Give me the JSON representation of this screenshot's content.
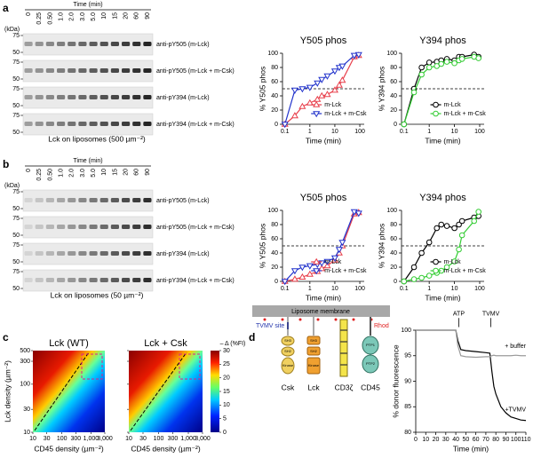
{
  "panel_labels": [
    "a",
    "b",
    "c",
    "d"
  ],
  "blots": [
    {
      "time_header": "Time (min)",
      "kda_label": "(kDa)",
      "times": [
        "0",
        "0.25",
        "0.50",
        "1.0",
        "2.0",
        "3.0",
        "5.0",
        "10",
        "15",
        "20",
        "60",
        "90"
      ],
      "markers": [
        "75",
        "50"
      ],
      "rows": [
        "anti-pY505 (m-Lck)",
        "anti-pY505 (m-Lck + m-Csk)",
        "anti-pY394 (m-Lck)",
        "anti-pY394 (m-Lck + m-Csk)"
      ],
      "caption": "Lck on liposomes (500 µm⁻²)"
    },
    {
      "time_header": "Time (min)",
      "kda_label": "(kDa)",
      "times": [
        "0",
        "0.25",
        "0.50",
        "1.0",
        "2.0",
        "3.0",
        "5.0",
        "10",
        "15",
        "20",
        "60",
        "90"
      ],
      "markers": [
        "75",
        "50"
      ],
      "rows": [
        "anti-pY505 (m-Lck)",
        "anti-pY505 (m-Lck + m-Csk)",
        "anti-pY394 (m-Lck)",
        "anti-pY394 (m-Lck + m-Csk)"
      ],
      "caption": "Lck on liposomes (50 µm⁻²)"
    }
  ],
  "chart_data": [
    {
      "type": "line",
      "title": "Y505 phos",
      "xlabel": "Time (min)",
      "ylabel": "% Y505 phos",
      "xscale": "log",
      "x": [
        0.1,
        0.25,
        0.5,
        1,
        2,
        3,
        5,
        10,
        15,
        20,
        60,
        90
      ],
      "xlim": [
        0.08,
        150
      ],
      "xticks": [
        0.1,
        1,
        10,
        100
      ],
      "ylim": [
        0,
        100
      ],
      "yticks": [
        0,
        20,
        40,
        60,
        80,
        100
      ],
      "hline": 50,
      "legend": "lower right",
      "series": [
        {
          "name": "m-Lck",
          "color": "#e8404c",
          "marker": "triangle",
          "values": [
            0,
            12,
            25,
            30,
            35,
            40,
            42,
            48,
            55,
            62,
            95,
            97
          ]
        },
        {
          "name": "m-Lck + m-Csk",
          "color": "#2233cc",
          "marker": "inverted-triangle",
          "values": [
            0,
            48,
            50,
            52,
            58,
            63,
            68,
            75,
            80,
            82,
            97,
            98
          ]
        }
      ]
    },
    {
      "type": "line",
      "title": "Y394 phos",
      "xlabel": "Time (min)",
      "ylabel": "% Y394 phos",
      "xscale": "log",
      "x": [
        0.1,
        0.25,
        0.5,
        1,
        2,
        3,
        5,
        10,
        15,
        20,
        60,
        90
      ],
      "xlim": [
        0.08,
        150
      ],
      "xticks": [
        0.1,
        1,
        10,
        100
      ],
      "ylim": [
        0,
        100
      ],
      "yticks": [
        0,
        20,
        40,
        60,
        80,
        100
      ],
      "hline": 50,
      "legend": "lower right",
      "series": [
        {
          "name": "m-Lck",
          "color": "#000000",
          "marker": "circle",
          "values": [
            0,
            50,
            80,
            87,
            88,
            90,
            92,
            90,
            95,
            95,
            98,
            95
          ]
        },
        {
          "name": "m-Lck + m-Csk",
          "color": "#33cc33",
          "marker": "circle",
          "values": [
            0,
            45,
            70,
            80,
            82,
            85,
            88,
            86,
            90,
            92,
            95,
            93
          ]
        }
      ]
    },
    {
      "type": "line",
      "title": "Y505 phos",
      "xlabel": "Time (min)",
      "ylabel": "% Y505 phos",
      "xscale": "log",
      "x": [
        0.1,
        0.25,
        0.5,
        1,
        2,
        3,
        5,
        10,
        15,
        20,
        60,
        90
      ],
      "xlim": [
        0.08,
        150
      ],
      "xticks": [
        0.1,
        1,
        10,
        100
      ],
      "ylim": [
        0,
        100
      ],
      "yticks": [
        0,
        20,
        40,
        60,
        80,
        100
      ],
      "hline": 50,
      "legend": "lower right",
      "series": [
        {
          "name": "m-Lck",
          "color": "#e8404c",
          "marker": "triangle",
          "values": [
            0,
            3,
            6,
            10,
            14,
            18,
            22,
            30,
            40,
            50,
            95,
            97
          ]
        },
        {
          "name": "m-Lck + m-Csk",
          "color": "#2233cc",
          "marker": "inverted-triangle",
          "values": [
            0,
            15,
            20,
            22,
            24,
            26,
            28,
            33,
            45,
            55,
            98,
            96
          ]
        }
      ]
    },
    {
      "type": "line",
      "title": "Y394 phos",
      "xlabel": "Time (min)",
      "ylabel": "% Y394 phos",
      "xscale": "log",
      "x": [
        0.1,
        0.25,
        0.5,
        1,
        2,
        3,
        5,
        10,
        15,
        20,
        60,
        90
      ],
      "xlim": [
        0.08,
        150
      ],
      "xticks": [
        0.1,
        1,
        10,
        100
      ],
      "ylim": [
        0,
        100
      ],
      "yticks": [
        0,
        20,
        40,
        60,
        80,
        100
      ],
      "hline": 50,
      "legend": "lower right",
      "series": [
        {
          "name": "m-Lck",
          "color": "#000000",
          "marker": "circle",
          "values": [
            0,
            20,
            40,
            55,
            75,
            80,
            78,
            75,
            80,
            85,
            90,
            92
          ]
        },
        {
          "name": "m-Lck + m-Csk",
          "color": "#33cc33",
          "marker": "circle",
          "values": [
            0,
            3,
            5,
            8,
            12,
            15,
            20,
            28,
            45,
            65,
            85,
            98
          ]
        }
      ]
    },
    {
      "type": "heatmap",
      "titles": [
        "Lck (WT)",
        "Lck + Csk"
      ],
      "xlabel": "CD45 density (µm⁻²)",
      "ylabel": "Lck density (µm⁻²)",
      "xscale": "log",
      "yscale": "log",
      "xlim": [
        10,
        3000
      ],
      "ylim": [
        10,
        500
      ],
      "xticks": [
        10,
        30,
        100,
        300,
        {
          "value": 1000,
          "label": "1,000"
        },
        {
          "value": 3000,
          "label": "3,000"
        }
      ],
      "yticks": [
        10,
        30,
        100,
        300,
        500
      ],
      "colorbar_label": "– Δ (%FI)",
      "clim": [
        0,
        30
      ],
      "cticks": [
        0,
        5,
        10,
        15,
        20,
        25,
        30
      ]
    },
    {
      "type": "line",
      "xlabel": "Time (min)",
      "ylabel": "% donor fluorescence",
      "x": [
        0,
        10,
        20,
        30,
        40,
        42,
        45,
        50,
        60,
        70,
        74,
        76,
        78,
        80,
        85,
        90,
        95,
        100,
        105,
        110
      ],
      "xlim": [
        0,
        110
      ],
      "xticks": [
        0,
        10,
        20,
        30,
        40,
        50,
        60,
        70,
        80,
        90,
        100,
        110
      ],
      "ylim": [
        80,
        100
      ],
      "yticks": [
        80,
        85,
        90,
        95,
        100
      ],
      "annotations": [
        "ATP",
        "TVMV",
        "+ buffer",
        "+TVMV"
      ],
      "series": [
        {
          "color": "#000000",
          "values": [
            100,
            100,
            100,
            100,
            100,
            98,
            96.2,
            96,
            95.8,
            95.6,
            95.5,
            92,
            89,
            87.5,
            85,
            83.8,
            83,
            82.7,
            82.4,
            82.3
          ]
        },
        {
          "color": "#9a9a9a",
          "values": [
            100,
            100,
            100,
            100,
            100,
            97,
            95,
            94.8,
            94.7,
            94.8,
            94.8,
            95,
            95.1,
            95,
            95,
            95,
            95,
            95.1,
            95,
            95
          ]
        }
      ]
    }
  ],
  "diagram": {
    "membrane": "Liposome membrane",
    "tvmv_site": "TVMV site",
    "rhod": "Rhod",
    "proteins": [
      {
        "name": "Csk",
        "domains": [
          "SH3",
          "SH2",
          "Kinase"
        ]
      },
      {
        "name": "Lck",
        "domains": [
          "SH3",
          "SH2",
          "Kinase"
        ]
      },
      {
        "name": "CD3ζ"
      },
      {
        "name": "CD45",
        "domains": [
          "PTP1",
          "PTP2"
        ]
      }
    ]
  }
}
